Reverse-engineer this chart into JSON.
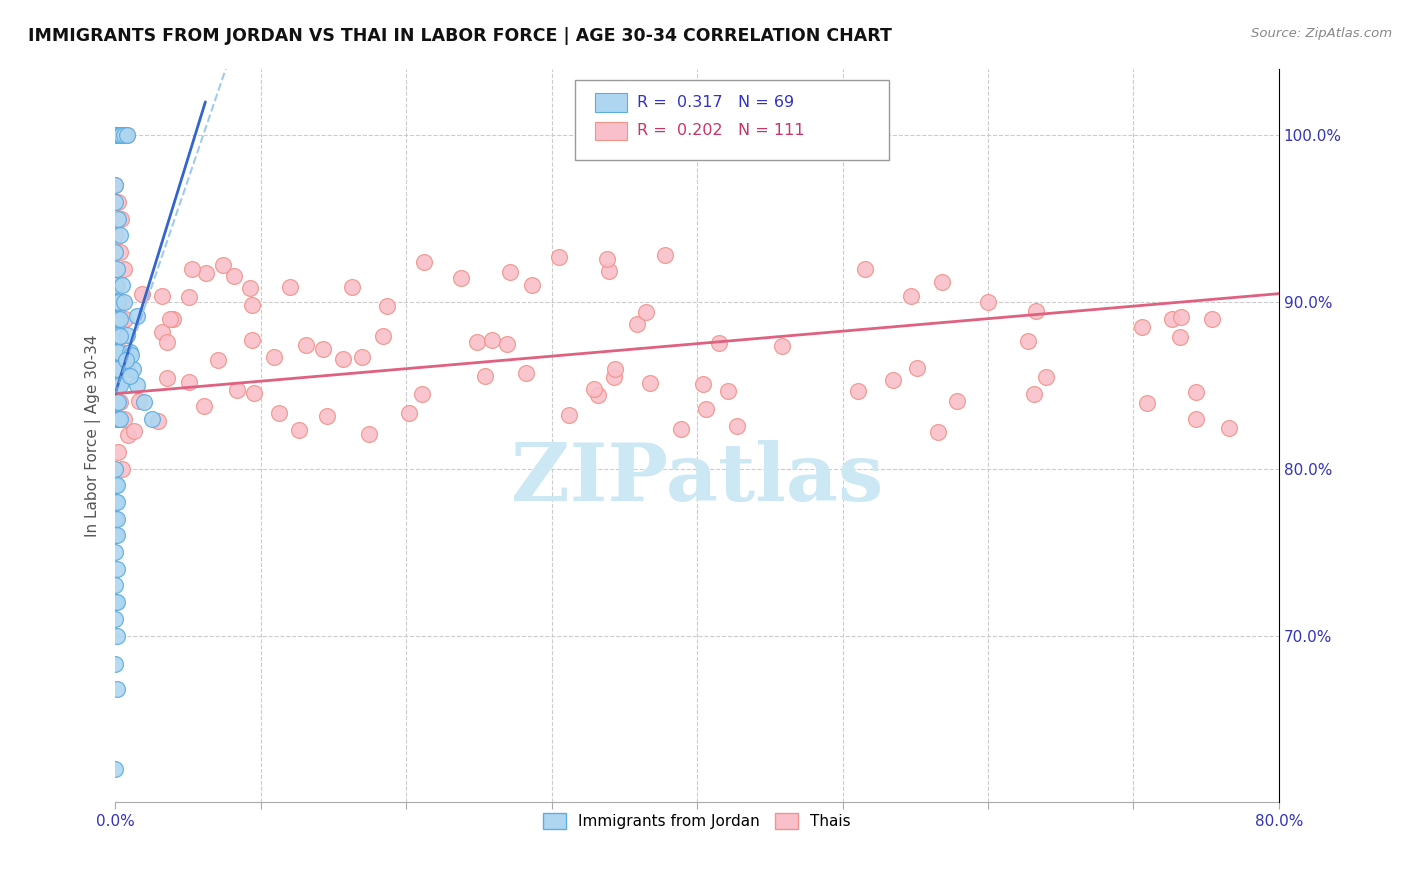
{
  "title": "IMMIGRANTS FROM JORDAN VS THAI IN LABOR FORCE | AGE 30-34 CORRELATION CHART",
  "source": "Source: ZipAtlas.com",
  "ylabel": "In Labor Force | Age 30-34",
  "xlim": [
    0.0,
    0.8
  ],
  "ylim": [
    0.6,
    1.04
  ],
  "ytick_right_labels": [
    "70.0%",
    "80.0%",
    "90.0%",
    "100.0%"
  ],
  "ytick_right_values": [
    0.7,
    0.8,
    0.9,
    1.0
  ],
  "jordan_color": "#aed6f1",
  "jordan_edge": "#5dade2",
  "thai_color": "#f9c0cb",
  "thai_edge": "#f1948a",
  "R_jordan": 0.317,
  "N_jordan": 69,
  "R_thai": 0.202,
  "N_thai": 111,
  "thai_trendline_x": [
    0.0,
    0.8
  ],
  "thai_trendline_y": [
    0.845,
    0.905
  ],
  "jordan_trendline_x": [
    0.0,
    0.062
  ],
  "jordan_trendline_y": [
    0.845,
    1.02
  ],
  "watermark": "ZIPatlas",
  "watermark_color": "#cce8f4",
  "legend_jordan_color": "#3333cc",
  "legend_thai_color": "#cc3366"
}
